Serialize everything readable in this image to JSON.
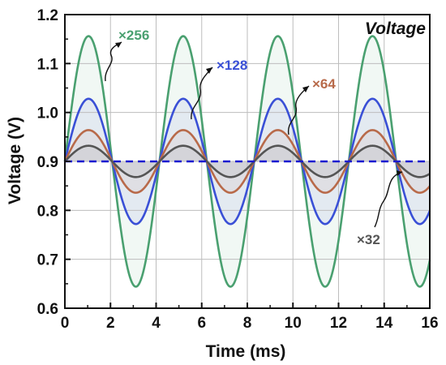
{
  "chart_data": {
    "type": "line",
    "panel_label": "Voltage",
    "xlabel": "Time (ms)",
    "ylabel": "Voltage (V)",
    "xlim": [
      0,
      16
    ],
    "ylim": [
      0.6,
      1.2
    ],
    "xticks": [
      "0",
      "2",
      "4",
      "6",
      "8",
      "10",
      "12",
      "14",
      "16"
    ],
    "yticks": [
      "0.6",
      "0.7",
      "0.8",
      "0.9",
      "1.0",
      "1.1",
      "1.2"
    ],
    "grid": true,
    "period_ms": 4.15,
    "offset_v": 0.9,
    "reference": {
      "y": 0.9,
      "color": "#1a1ad0",
      "style": "dashed"
    },
    "series": [
      {
        "name": "×256",
        "amplitude": 0.256,
        "color": "#4aa070",
        "peak_values": [
          1.156,
          1.156,
          1.156,
          1.156
        ],
        "trough_values": [
          0.644,
          0.644,
          0.644,
          0.644
        ]
      },
      {
        "name": "×128",
        "amplitude": 0.128,
        "color": "#3a50d6",
        "peak_values": [
          1.028,
          1.028,
          1.028,
          1.028
        ],
        "trough_values": [
          0.772,
          0.772,
          0.772,
          0.772
        ]
      },
      {
        "name": "×64",
        "amplitude": 0.064,
        "color": "#b86a4a",
        "peak_values": [
          0.964,
          0.964,
          0.964,
          0.964
        ],
        "trough_values": [
          0.836,
          0.836,
          0.836,
          0.836
        ]
      },
      {
        "name": "×32",
        "amplitude": 0.032,
        "color": "#555555",
        "peak_values": [
          0.932,
          0.932,
          0.932,
          0.932
        ],
        "trough_values": [
          0.868,
          0.868,
          0.868,
          0.868
        ]
      }
    ]
  }
}
